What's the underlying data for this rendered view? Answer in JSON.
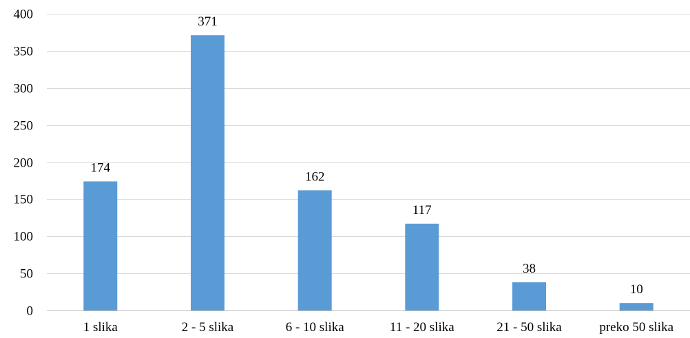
{
  "chart_data": {
    "type": "bar",
    "categories": [
      "1 slika",
      "2 - 5 slika",
      "6 - 10 slika",
      "11 - 20 slika",
      "21 - 50 slika",
      "preko 50 slika"
    ],
    "values": [
      174,
      371,
      162,
      117,
      38,
      10
    ],
    "data_labels": [
      "174",
      "371",
      "162",
      "117",
      "38",
      "10"
    ],
    "title": "",
    "xlabel": "",
    "ylabel": "",
    "ylim": [
      0,
      400
    ],
    "yticks": [
      0,
      50,
      100,
      150,
      200,
      250,
      300,
      350,
      400
    ],
    "grid": true,
    "legend": "none",
    "bar_color": "#5b9bd5",
    "grid_color": "#d9d9d9"
  }
}
